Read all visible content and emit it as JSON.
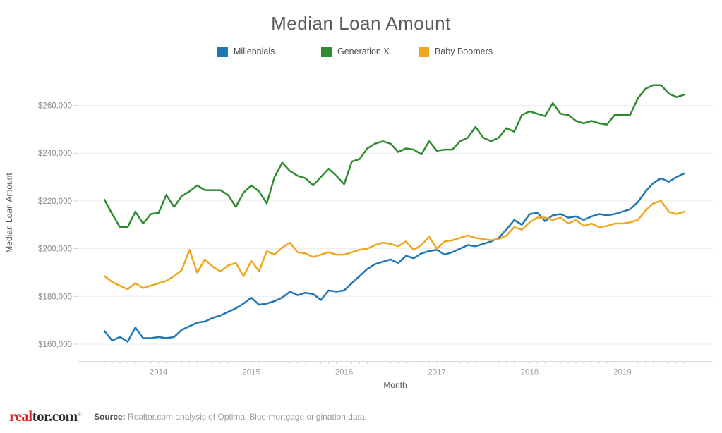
{
  "title": "Median Loan Amount",
  "chart_data": {
    "type": "line",
    "title": "Median Loan Amount",
    "xlabel": "Month",
    "ylabel": "Median Loan Amount",
    "legend_position": "top",
    "grid": "horizontal",
    "x_tick_labels": [
      "2014",
      "2015",
      "2016",
      "2017",
      "2018",
      "2019"
    ],
    "y_ticks": [
      160000,
      180000,
      200000,
      220000,
      240000,
      260000
    ],
    "ylim": [
      155000,
      272000
    ],
    "months": [
      "2013-06",
      "2013-07",
      "2013-08",
      "2013-09",
      "2013-10",
      "2013-11",
      "2013-12",
      "2014-01",
      "2014-02",
      "2014-03",
      "2014-04",
      "2014-05",
      "2014-06",
      "2014-07",
      "2014-08",
      "2014-09",
      "2014-10",
      "2014-11",
      "2014-12",
      "2015-01",
      "2015-02",
      "2015-03",
      "2015-04",
      "2015-05",
      "2015-06",
      "2015-07",
      "2015-08",
      "2015-09",
      "2015-10",
      "2015-11",
      "2015-12",
      "2016-01",
      "2016-02",
      "2016-03",
      "2016-04",
      "2016-05",
      "2016-06",
      "2016-07",
      "2016-08",
      "2016-09",
      "2016-10",
      "2016-11",
      "2016-12",
      "2017-01",
      "2017-02",
      "2017-03",
      "2017-04",
      "2017-05",
      "2017-06",
      "2017-07",
      "2017-08",
      "2017-09",
      "2017-10",
      "2017-11",
      "2017-12",
      "2018-01",
      "2018-02",
      "2018-03",
      "2018-04",
      "2018-05",
      "2018-06",
      "2018-07",
      "2018-08",
      "2018-09",
      "2018-10",
      "2018-11",
      "2018-12",
      "2019-01",
      "2019-02",
      "2019-03",
      "2019-04",
      "2019-05",
      "2019-06",
      "2019-07",
      "2019-08",
      "2019-09"
    ],
    "series": [
      {
        "name": "Millennials",
        "color": "#1f77b4",
        "values": [
          165500,
          161500,
          163000,
          161000,
          167000,
          162500,
          162500,
          163000,
          162500,
          163000,
          166000,
          167500,
          169000,
          169500,
          171000,
          172000,
          173500,
          175000,
          177000,
          179500,
          176500,
          177000,
          178000,
          179500,
          182000,
          180500,
          181500,
          181000,
          178500,
          182500,
          182000,
          182500,
          185500,
          188500,
          191500,
          193500,
          194500,
          195500,
          194000,
          197000,
          196000,
          198000,
          199000,
          199500,
          197500,
          198500,
          200000,
          201500,
          201000,
          202000,
          203000,
          204500,
          208000,
          212000,
          210000,
          214500,
          215000,
          211500,
          214000,
          214500,
          213000,
          213500,
          212000,
          213500,
          214500,
          214000,
          214500,
          215500,
          216500,
          219500,
          224000,
          227500,
          229500,
          228000,
          230000,
          231500
        ]
      },
      {
        "name": "Generation X",
        "color": "#2e8b2e",
        "values": [
          220500,
          214500,
          209000,
          209000,
          215500,
          210500,
          214500,
          215000,
          222500,
          217500,
          222000,
          224000,
          226500,
          224500,
          224500,
          224500,
          222500,
          217500,
          223500,
          226500,
          224000,
          219000,
          230000,
          236000,
          232500,
          230500,
          229500,
          226500,
          230000,
          233500,
          230500,
          227000,
          236500,
          237500,
          242000,
          244000,
          245000,
          244000,
          240500,
          242000,
          241500,
          239500,
          245000,
          241000,
          241500,
          241500,
          245000,
          246500,
          251000,
          246500,
          245000,
          246500,
          250500,
          249000,
          256000,
          257500,
          256500,
          255500,
          261000,
          256500,
          256000,
          253500,
          252500,
          253500,
          252500,
          252000,
          256000,
          256000,
          256000,
          263000,
          267000,
          268500,
          268500,
          265000,
          263500,
          264500
        ]
      },
      {
        "name": "Baby Boomers",
        "color": "#eea71f",
        "values": [
          188500,
          186000,
          184500,
          183000,
          185500,
          183500,
          184500,
          185500,
          186500,
          188500,
          191000,
          199500,
          190000,
          195500,
          192500,
          190500,
          193000,
          194000,
          188500,
          195000,
          190500,
          199000,
          197500,
          200500,
          202500,
          198500,
          198000,
          196500,
          197500,
          198500,
          197500,
          197500,
          198500,
          199500,
          200000,
          201500,
          202500,
          202000,
          201000,
          203000,
          199500,
          201500,
          205000,
          200000,
          203000,
          203500,
          204500,
          205500,
          204500,
          204000,
          203500,
          204000,
          205500,
          209000,
          208000,
          211000,
          213000,
          213000,
          212000,
          213000,
          210500,
          212000,
          209500,
          210500,
          209000,
          209500,
          210500,
          210500,
          211000,
          212000,
          216000,
          219000,
          220000,
          215500,
          214500,
          215500
        ]
      }
    ]
  },
  "footer": {
    "logo_real": "real",
    "logo_rest": "tor.com",
    "logo_reg": "®",
    "source_label": "Source:",
    "source_text": " Realtor.com analysis of Optimal Blue mortgage origination data."
  }
}
